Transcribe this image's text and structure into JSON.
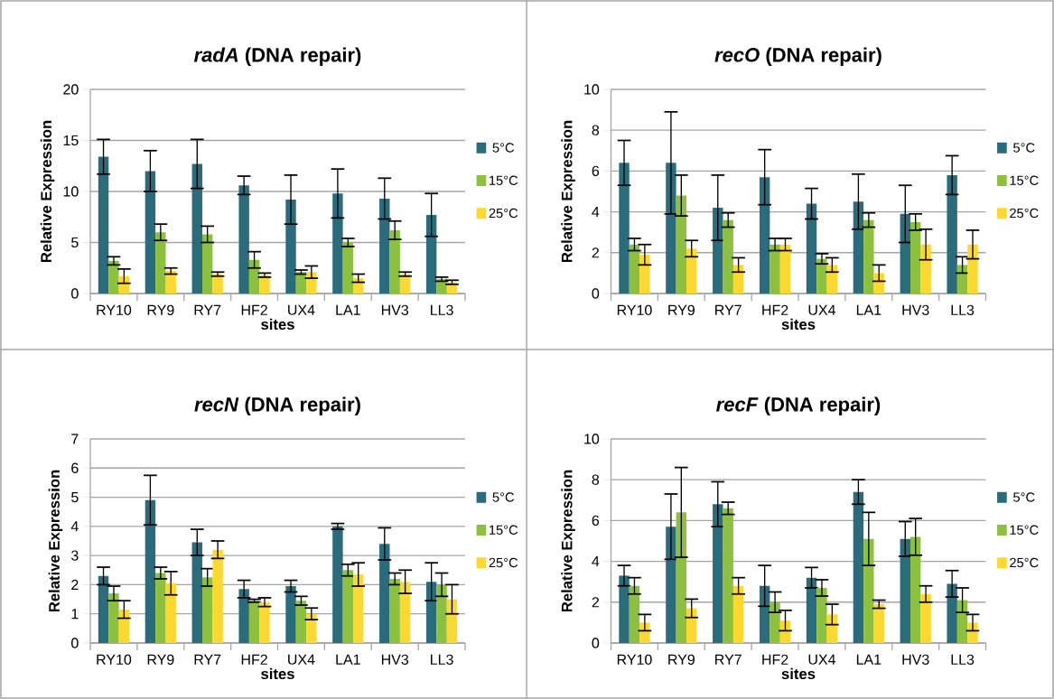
{
  "chart_data": [
    {
      "type": "bar",
      "title": "*radA* (DNA repair)",
      "xlabel": "sites",
      "ylabel": "Relative Expression",
      "categories": [
        "RY10",
        "RY9",
        "RY7",
        "HF2",
        "UX4",
        "LA1",
        "HV3",
        "LL3"
      ],
      "ylim": [
        0,
        20
      ],
      "yticks": [
        0,
        5,
        10,
        15,
        20
      ],
      "grid": "y",
      "legend": "right",
      "series": [
        {
          "name": "5°C",
          "color": "#2a6b7c",
          "values": [
            13.4,
            12.0,
            12.7,
            10.6,
            9.2,
            9.8,
            9.3,
            7.7
          ],
          "errors": [
            1.7,
            2.0,
            2.4,
            0.9,
            2.4,
            2.4,
            2.0,
            2.1
          ]
        },
        {
          "name": "15°C",
          "color": "#8dc03f",
          "values": [
            3.2,
            6.0,
            5.8,
            3.3,
            2.1,
            5.0,
            6.2,
            1.4
          ],
          "errors": [
            0.4,
            0.8,
            0.8,
            0.8,
            0.2,
            0.4,
            0.9,
            0.2
          ]
        },
        {
          "name": "25°C",
          "color": "#fcd830",
          "values": [
            1.7,
            2.2,
            1.9,
            1.8,
            2.1,
            1.5,
            1.9,
            1.1
          ],
          "errors": [
            0.7,
            0.3,
            0.2,
            0.2,
            0.6,
            0.4,
            0.2,
            0.2
          ]
        }
      ]
    },
    {
      "type": "bar",
      "title": "*recO* (DNA repair)",
      "xlabel": "sites",
      "ylabel": "Relative Expression",
      "categories": [
        "RY10",
        "RY9",
        "RY7",
        "HF2",
        "UX4",
        "LA1",
        "HV3",
        "LL3"
      ],
      "ylim": [
        0,
        10
      ],
      "yticks": [
        0,
        2,
        4,
        6,
        8,
        10
      ],
      "grid": "y",
      "legend": "right",
      "series": [
        {
          "name": "5°C",
          "color": "#2a6b7c",
          "values": [
            6.4,
            6.4,
            4.2,
            5.7,
            4.4,
            4.5,
            3.9,
            5.8
          ],
          "errors": [
            1.1,
            2.5,
            1.6,
            1.35,
            0.75,
            1.35,
            1.4,
            0.95
          ]
        },
        {
          "name": "15°C",
          "color": "#8dc03f",
          "values": [
            2.4,
            4.8,
            3.6,
            2.4,
            1.7,
            3.6,
            3.5,
            1.4
          ],
          "errors": [
            0.3,
            1.0,
            0.35,
            0.3,
            0.25,
            0.35,
            0.4,
            0.4
          ]
        },
        {
          "name": "25°C",
          "color": "#fcd830",
          "values": [
            1.9,
            2.2,
            1.4,
            2.4,
            1.4,
            1.0,
            2.4,
            2.4
          ],
          "errors": [
            0.5,
            0.4,
            0.35,
            0.3,
            0.35,
            0.4,
            0.75,
            0.7
          ]
        }
      ]
    },
    {
      "type": "bar",
      "title": "*recN* (DNA repair)",
      "xlabel": "sites",
      "ylabel": "Relative Expression",
      "categories": [
        "RY10",
        "RY9",
        "RY7",
        "HF2",
        "UX4",
        "LA1",
        "HV3",
        "LL3"
      ],
      "ylim": [
        0,
        7
      ],
      "yticks": [
        0,
        1,
        2,
        3,
        4,
        5,
        6,
        7
      ],
      "grid": "y",
      "legend": "right",
      "series": [
        {
          "name": "5°C",
          "color": "#2a6b7c",
          "values": [
            2.3,
            4.9,
            3.45,
            1.85,
            1.95,
            4.0,
            3.4,
            2.1
          ],
          "errors": [
            0.3,
            0.85,
            0.45,
            0.3,
            0.2,
            0.1,
            0.55,
            0.65
          ]
        },
        {
          "name": "15°C",
          "color": "#8dc03f",
          "values": [
            1.7,
            2.4,
            2.25,
            1.45,
            1.45,
            2.5,
            2.2,
            2.0
          ],
          "errors": [
            0.25,
            0.2,
            0.3,
            0.05,
            0.15,
            0.2,
            0.2,
            0.4
          ]
        },
        {
          "name": "25°C",
          "color": "#fcd830",
          "values": [
            1.15,
            2.05,
            3.2,
            1.4,
            1.0,
            2.35,
            2.1,
            1.5
          ],
          "errors": [
            0.3,
            0.4,
            0.3,
            0.15,
            0.2,
            0.4,
            0.4,
            0.5
          ]
        }
      ]
    },
    {
      "type": "bar",
      "title": "*recF* (DNA repair)",
      "xlabel": "sites",
      "ylabel": "Relative Expression",
      "categories": [
        "RY10",
        "RY9",
        "RY7",
        "HF2",
        "UX4",
        "LA1",
        "HV3",
        "LL3"
      ],
      "ylim": [
        0,
        10
      ],
      "yticks": [
        0,
        2,
        4,
        6,
        8,
        10
      ],
      "grid": "y",
      "legend": "right",
      "series": [
        {
          "name": "5°C",
          "color": "#2a6b7c",
          "values": [
            3.3,
            5.7,
            6.8,
            2.8,
            3.2,
            7.4,
            5.1,
            2.9
          ],
          "errors": [
            0.5,
            1.6,
            1.1,
            1.0,
            0.5,
            0.6,
            0.85,
            0.65
          ]
        },
        {
          "name": "15°C",
          "color": "#8dc03f",
          "values": [
            2.8,
            6.4,
            6.6,
            2.0,
            2.7,
            5.1,
            5.2,
            2.1
          ],
          "errors": [
            0.4,
            2.2,
            0.3,
            0.5,
            0.4,
            1.3,
            0.9,
            0.6
          ]
        },
        {
          "name": "25°C",
          "color": "#fcd830",
          "values": [
            1.0,
            1.7,
            2.8,
            1.1,
            1.4,
            1.9,
            2.4,
            1.0
          ],
          "errors": [
            0.4,
            0.45,
            0.4,
            0.5,
            0.5,
            0.2,
            0.4,
            0.4
          ]
        }
      ]
    }
  ]
}
